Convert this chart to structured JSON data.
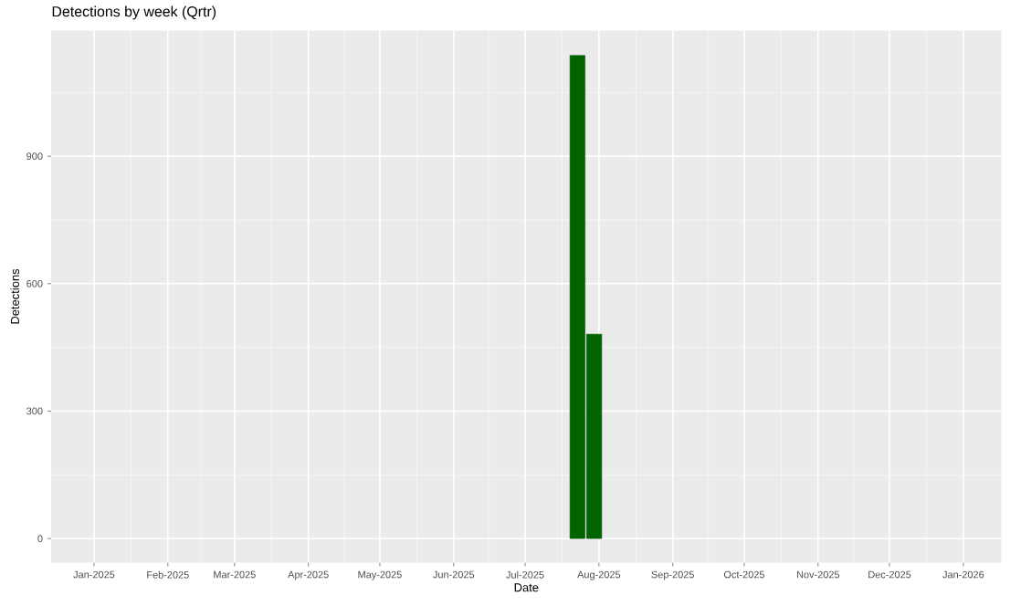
{
  "chart_data": {
    "type": "bar",
    "title": "Detections by week (Qrtr)",
    "xlabel": "Date",
    "ylabel": "Detections",
    "x": [
      "2025-07-23",
      "2025-07-30"
    ],
    "values": [
      1137,
      481
    ],
    "color": "#006400",
    "xlim": [
      "2024-12-14",
      "2026-01-17"
    ],
    "xticks": [
      {
        "value": "2025-01-01",
        "label": "Jan-2025"
      },
      {
        "value": "2025-02-01",
        "label": "Feb-2025"
      },
      {
        "value": "2025-03-01",
        "label": "Mar-2025"
      },
      {
        "value": "2025-04-01",
        "label": "Apr-2025"
      },
      {
        "value": "2025-05-01",
        "label": "May-2025"
      },
      {
        "value": "2025-06-01",
        "label": "Jun-2025"
      },
      {
        "value": "2025-07-01",
        "label": "Jul-2025"
      },
      {
        "value": "2025-08-01",
        "label": "Aug-2025"
      },
      {
        "value": "2025-09-01",
        "label": "Sep-2025"
      },
      {
        "value": "2025-10-01",
        "label": "Oct-2025"
      },
      {
        "value": "2025-11-01",
        "label": "Nov-2025"
      },
      {
        "value": "2025-12-01",
        "label": "Dec-2025"
      },
      {
        "value": "2026-01-01",
        "label": "Jan-2026"
      }
    ],
    "ylim": [
      -57,
      1196
    ],
    "yticks": [
      0,
      300,
      600,
      900
    ],
    "grid": true
  }
}
